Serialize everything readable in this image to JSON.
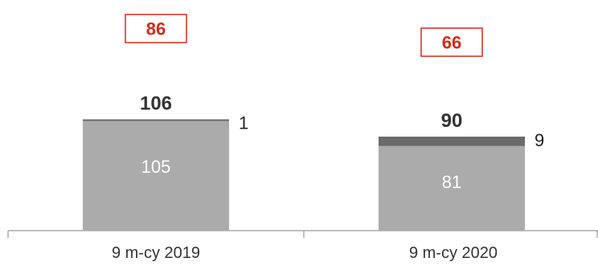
{
  "chart_data": {
    "type": "bar",
    "stacked": true,
    "categories": [
      "9 m-cy 2019",
      "9 m-cy 2020"
    ],
    "series": [
      {
        "values": [
          105,
          81
        ],
        "color": "#ababab",
        "label_color": "#ffffff"
      },
      {
        "values": [
          1,
          9
        ],
        "color": "#6a6a6a",
        "label_color": "#222222"
      }
    ],
    "totals": [
      106,
      90
    ],
    "highlight_values": [
      86,
      66
    ],
    "highlight_color": "#d42a1c",
    "axis_color": "#808080",
    "ylim": [
      0,
      110
    ],
    "grid": false,
    "legend": "none"
  }
}
